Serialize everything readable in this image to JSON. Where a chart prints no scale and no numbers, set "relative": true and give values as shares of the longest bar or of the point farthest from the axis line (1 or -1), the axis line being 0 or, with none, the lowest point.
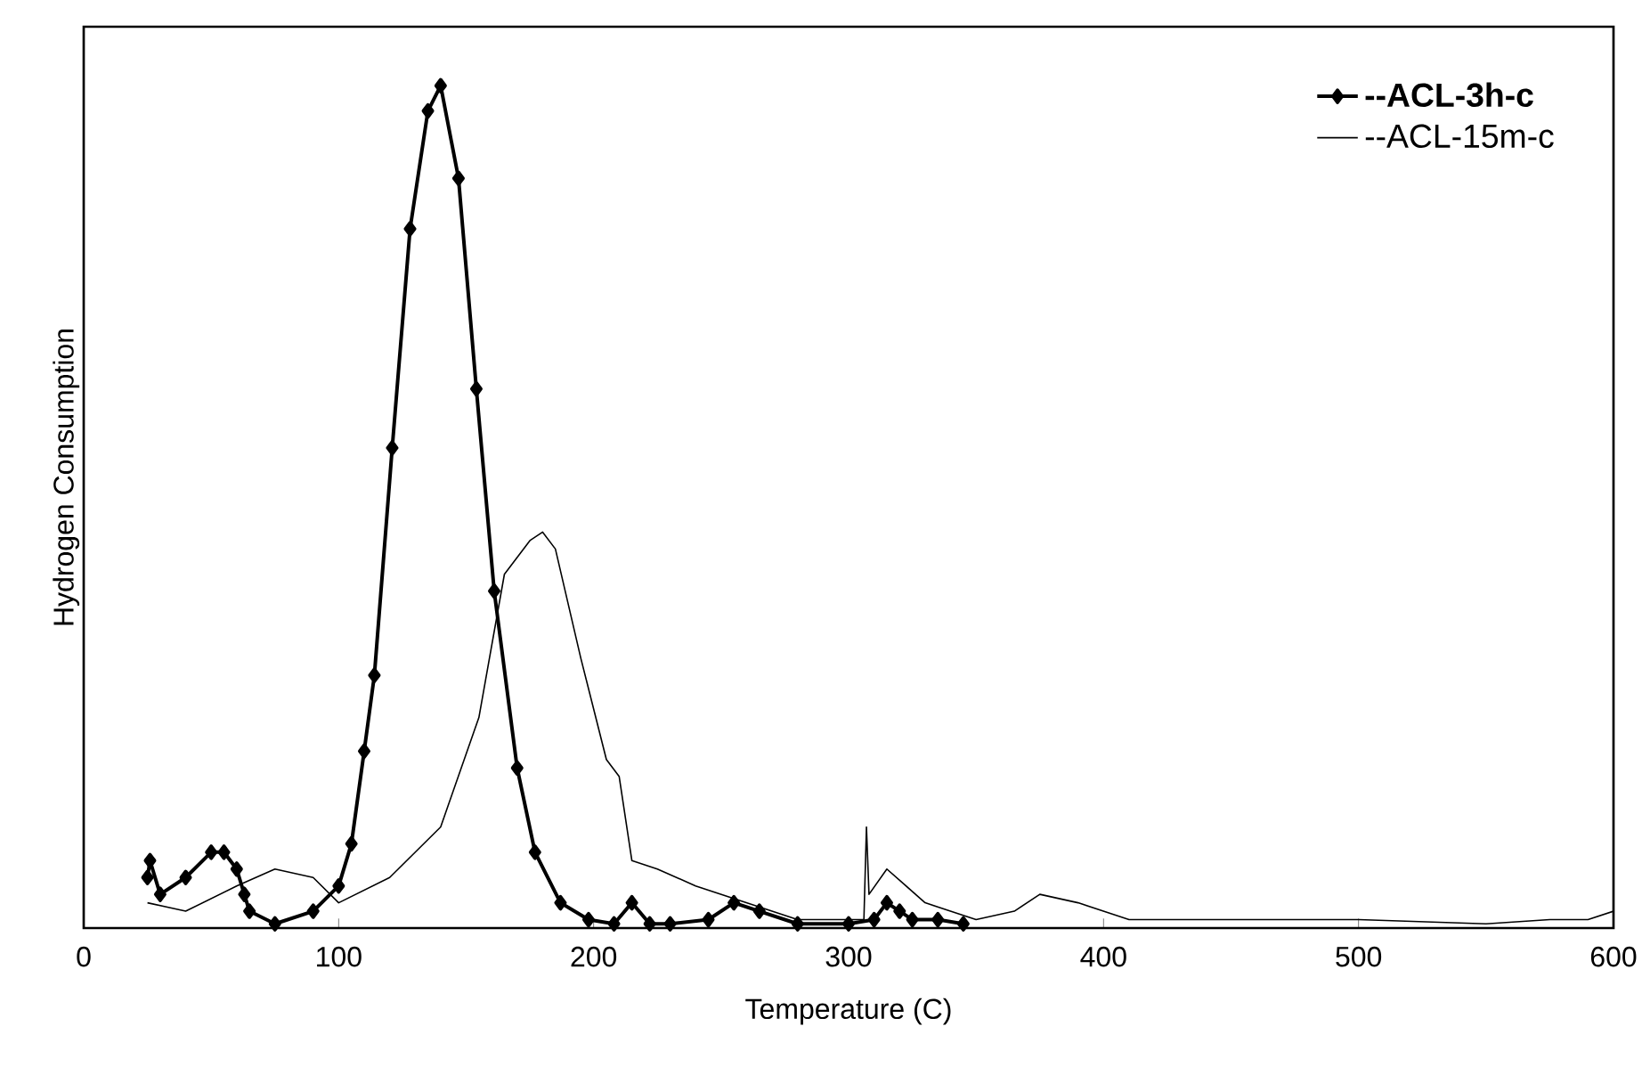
{
  "chart_data": {
    "type": "line",
    "xlabel": "Temperature (C)",
    "ylabel": "Hydrogen Consumption",
    "relative": true,
    "xlim": [
      0,
      600
    ],
    "xticks": [
      0,
      100,
      200,
      300,
      400,
      500,
      600
    ],
    "legend": "top right",
    "grid": false,
    "series": [
      {
        "name": "--ACL-3h-c",
        "color": "#000000",
        "marker": "diamond",
        "x": [
          25,
          26,
          30,
          40,
          50,
          55,
          60,
          63,
          65,
          75,
          90,
          100,
          105,
          110,
          114,
          121,
          128,
          135,
          140,
          147,
          154,
          161,
          170,
          177,
          187,
          198,
          208,
          215,
          222,
          230,
          245,
          255,
          265,
          280,
          300,
          310,
          315,
          320,
          325,
          335,
          345
        ],
        "values": [
          0.06,
          0.08,
          0.04,
          0.06,
          0.09,
          0.09,
          0.07,
          0.04,
          0.02,
          0.005,
          0.02,
          0.05,
          0.1,
          0.21,
          0.3,
          0.57,
          0.83,
          0.97,
          1.0,
          0.89,
          0.64,
          0.4,
          0.19,
          0.09,
          0.03,
          0.01,
          0.005,
          0.03,
          0.005,
          0.005,
          0.01,
          0.03,
          0.02,
          0.005,
          0.005,
          0.01,
          0.03,
          0.02,
          0.01,
          0.01,
          0.005
        ]
      },
      {
        "name": "--ACL-15m-c",
        "color": "#000000",
        "x": [
          25,
          40,
          60,
          75,
          90,
          100,
          120,
          140,
          155,
          165,
          175,
          180,
          185,
          195,
          205,
          210,
          215,
          225,
          240,
          260,
          280,
          300,
          306,
          307,
          308,
          315,
          330,
          350,
          365,
          375,
          390,
          410,
          450,
          500,
          550,
          575,
          590,
          600
        ],
        "values": [
          0.03,
          0.02,
          0.05,
          0.07,
          0.06,
          0.03,
          0.06,
          0.12,
          0.25,
          0.42,
          0.46,
          0.47,
          0.45,
          0.32,
          0.2,
          0.18,
          0.08,
          0.07,
          0.05,
          0.03,
          0.01,
          0.01,
          0.01,
          0.12,
          0.04,
          0.07,
          0.03,
          0.01,
          0.02,
          0.04,
          0.03,
          0.01,
          0.01,
          0.01,
          0.005,
          0.01,
          0.01,
          0.02
        ]
      }
    ]
  }
}
